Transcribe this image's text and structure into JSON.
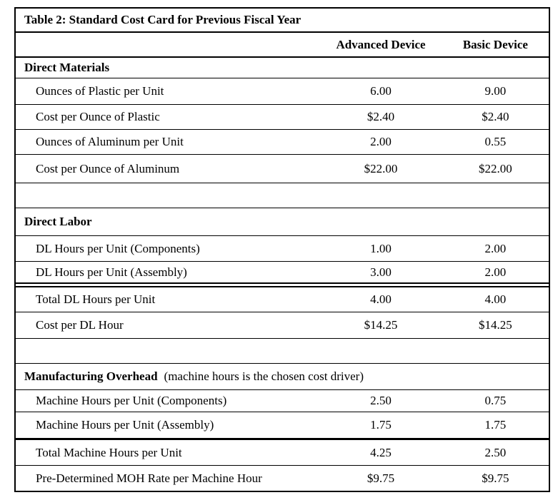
{
  "page": {
    "background": "#ffffff",
    "border_color": "#000000",
    "text_color": "#000000"
  },
  "table": {
    "title": "Table 2: Standard Cost Card for Previous Fiscal Year",
    "columns": {
      "advanced": "Advanced Device",
      "basic": "Basic Device"
    },
    "sections": [
      {
        "name": "Direct Materials",
        "note": "",
        "rows": [
          {
            "label": "Ounces of Plastic per Unit",
            "advanced": "6.00",
            "basic": "9.00"
          },
          {
            "label": "Cost per Ounce of Plastic",
            "advanced": "$2.40",
            "basic": "$2.40"
          },
          {
            "label": "Ounces of Aluminum per Unit",
            "advanced": "2.00",
            "basic": "0.55"
          },
          {
            "label": "Cost per Ounce of Aluminum",
            "advanced": "$22.00",
            "basic": "$22.00"
          }
        ]
      },
      {
        "name": "Direct Labor",
        "note": "",
        "rows": [
          {
            "label": "DL Hours per Unit (Components)",
            "advanced": "1.00",
            "basic": "2.00"
          },
          {
            "label": "DL Hours per Unit (Assembly)",
            "advanced": "3.00",
            "basic": "2.00"
          },
          {
            "label": "Total DL Hours per Unit",
            "advanced": "4.00",
            "basic": "4.00"
          },
          {
            "label": "Cost per DL Hour",
            "advanced": "$14.25",
            "basic": "$14.25"
          }
        ]
      },
      {
        "name": "Manufacturing Overhead",
        "note": "(machine hours is the chosen cost driver)",
        "rows": [
          {
            "label": "Machine Hours per Unit (Components)",
            "advanced": "2.50",
            "basic": "0.75"
          },
          {
            "label": "Machine Hours per Unit (Assembly)",
            "advanced": "1.75",
            "basic": "1.75"
          },
          {
            "label": "Total Machine Hours per Unit",
            "advanced": "4.25",
            "basic": "2.50"
          },
          {
            "label": "Pre-Determined MOH Rate per Machine Hour",
            "advanced": "$9.75",
            "basic": "$9.75"
          }
        ]
      }
    ]
  }
}
